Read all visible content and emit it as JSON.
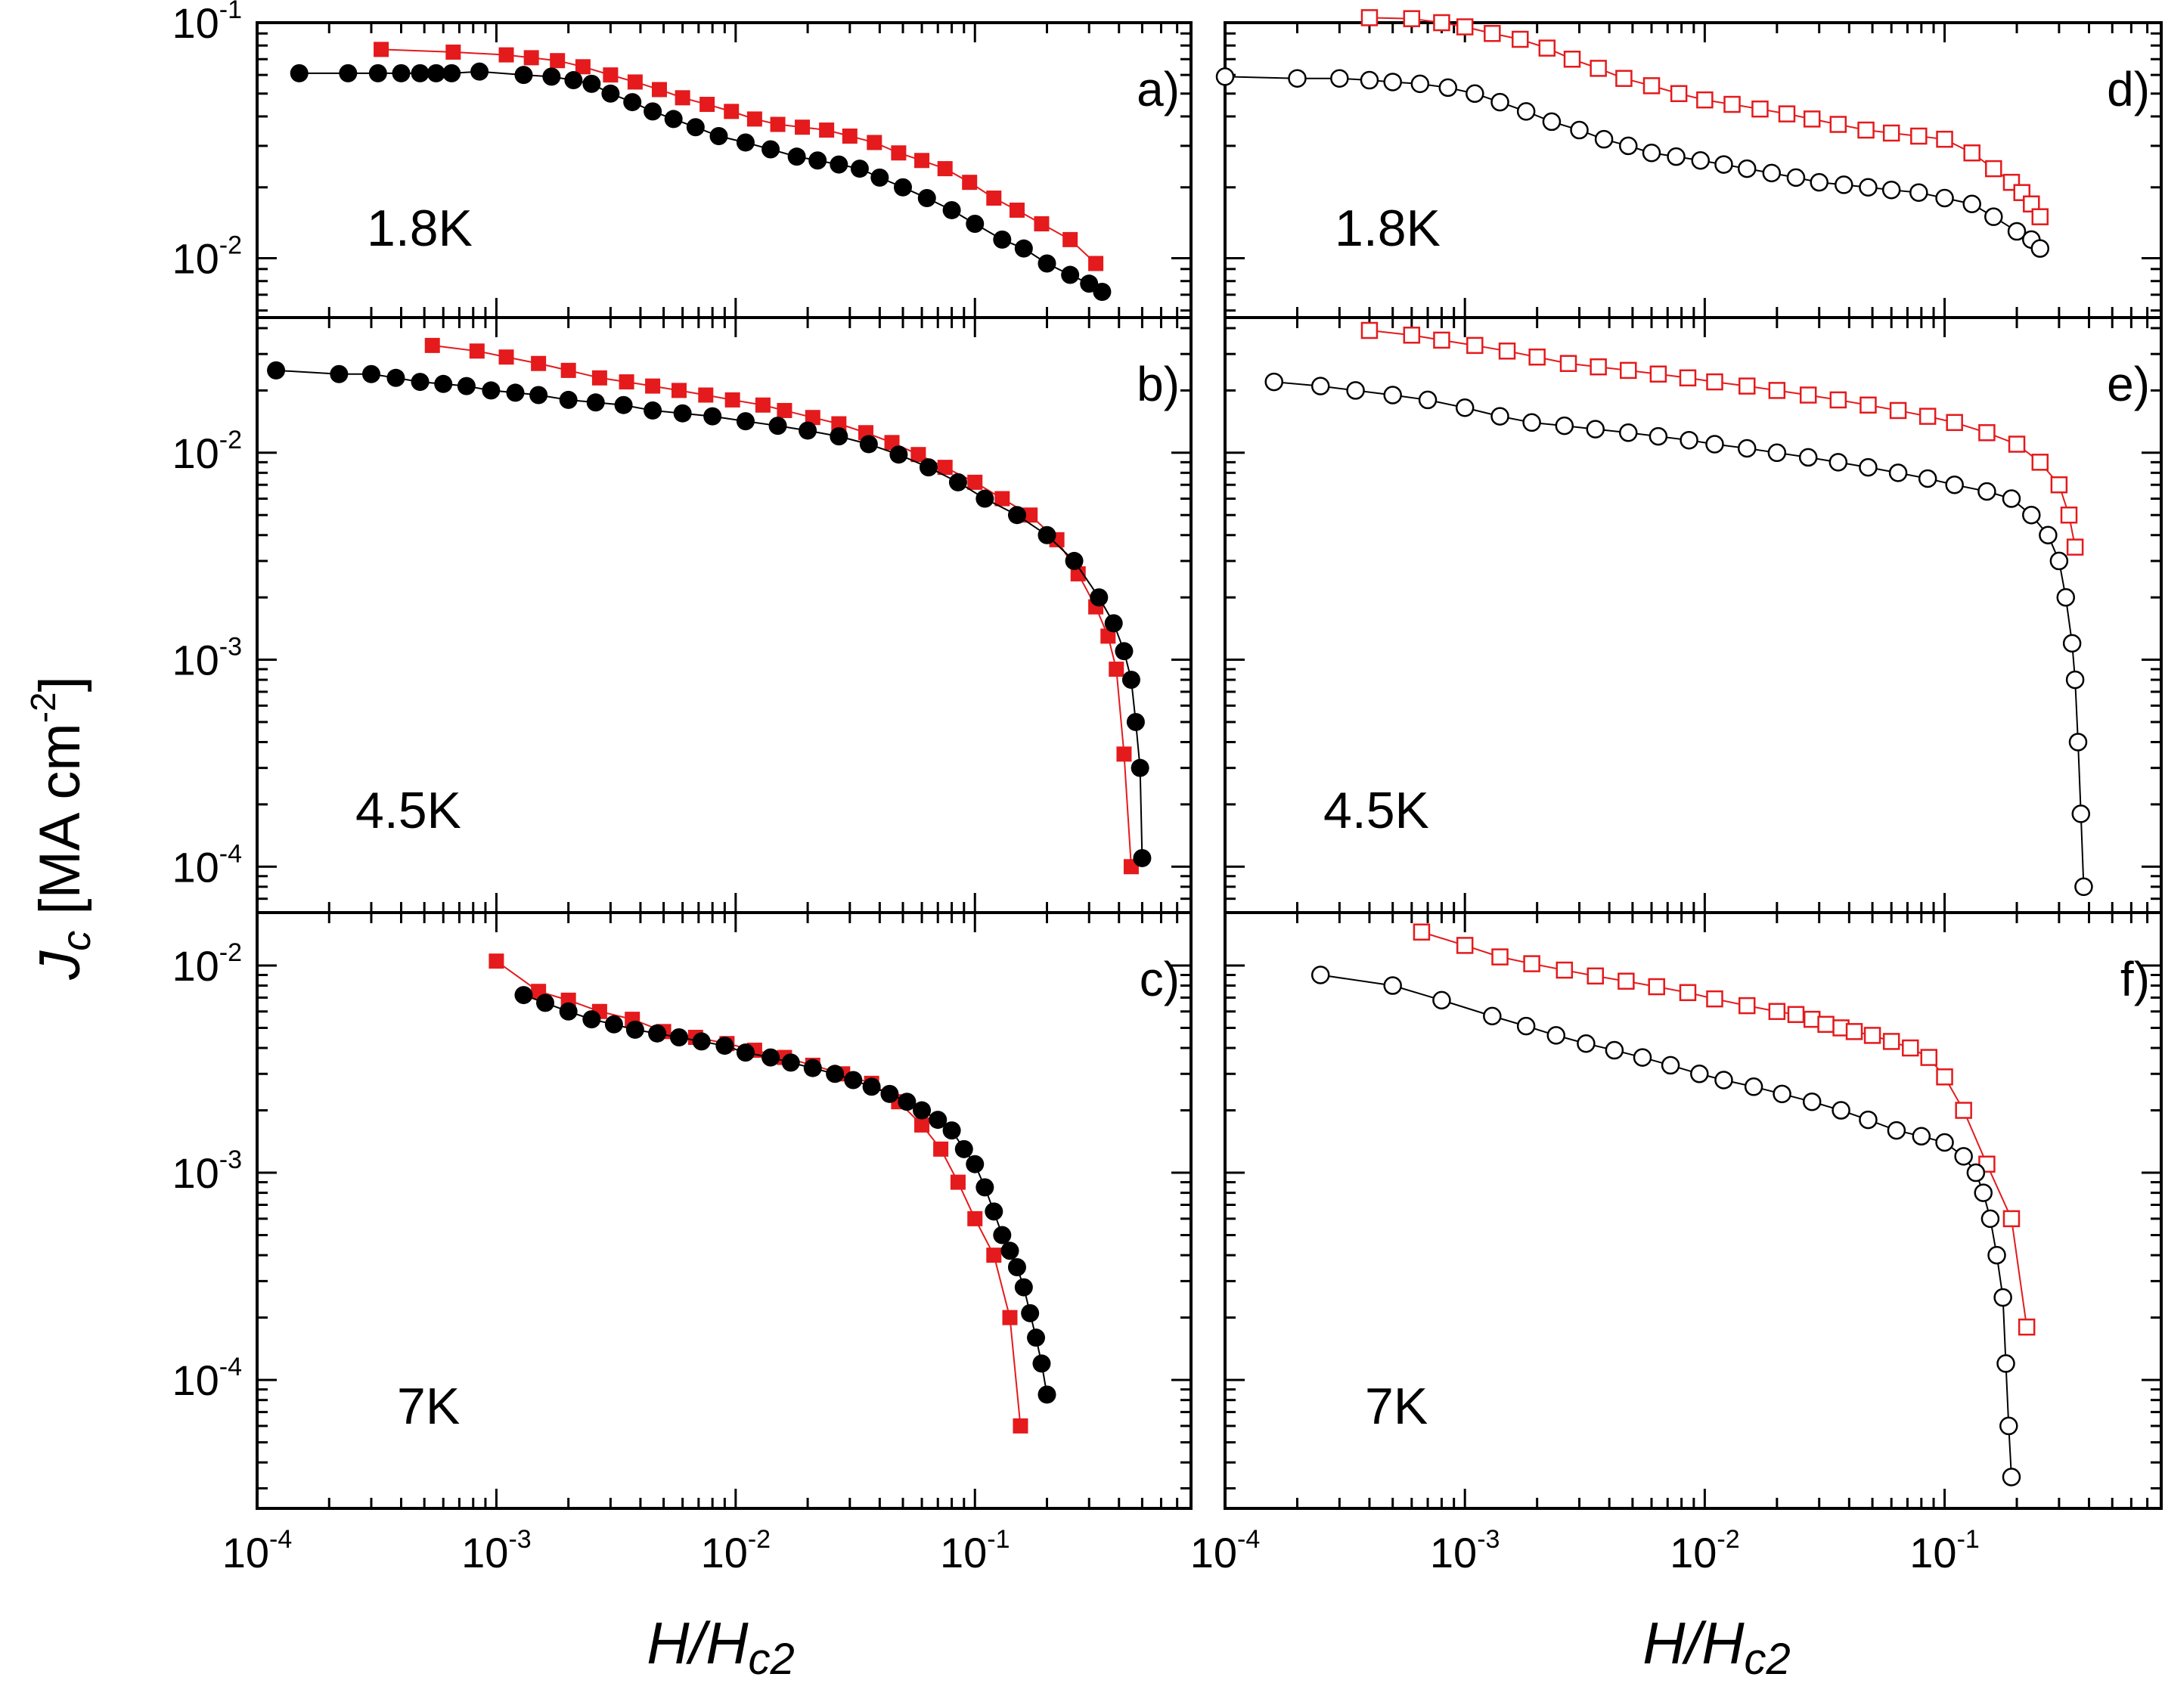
{
  "figure": {
    "x_axis_title": {
      "base": "H/H",
      "sub": "c2"
    },
    "y_axis_title": {
      "j": "J",
      "j_sub": "c",
      "unit_a": " [MA cm",
      "unit_exp": "-2",
      "unit_b": "]"
    }
  },
  "colors": {
    "series_a": "#e41a1c",
    "series_b": "#000000"
  },
  "chart_data": [
    {
      "id": "a",
      "type": "scatter",
      "panel_label": "a)",
      "temperature": "1.8K",
      "x_scale": "log",
      "y_scale": "log",
      "xlim": [
        0.0001,
        0.8
      ],
      "ylim": [
        0.0056,
        0.1
      ],
      "y_ticks": [
        {
          "v": 0.1,
          "e": "-1"
        },
        {
          "v": 0.01,
          "e": "-2"
        }
      ],
      "series": [
        {
          "name": "red filled squares",
          "color": "#e41a1c",
          "marker": "square",
          "filled": true,
          "x": [
            0.00033,
            0.00066,
            0.0011,
            0.0014,
            0.0018,
            0.0023,
            0.003,
            0.0038,
            0.0048,
            0.006,
            0.0076,
            0.0096,
            0.012,
            0.015,
            0.019,
            0.024,
            0.03,
            0.038,
            0.048,
            0.06,
            0.075,
            0.095,
            0.12,
            0.15,
            0.19,
            0.25,
            0.32
          ],
          "y": [
            0.077,
            0.075,
            0.073,
            0.071,
            0.069,
            0.065,
            0.06,
            0.056,
            0.052,
            0.048,
            0.045,
            0.042,
            0.039,
            0.037,
            0.036,
            0.035,
            0.033,
            0.031,
            0.028,
            0.026,
            0.024,
            0.021,
            0.018,
            0.016,
            0.014,
            0.012,
            0.0095
          ]
        },
        {
          "name": "black filled circles",
          "color": "#000000",
          "marker": "circle",
          "filled": true,
          "x": [
            0.00015,
            0.00024,
            0.00032,
            0.0004,
            0.00048,
            0.00056,
            0.00065,
            0.00085,
            0.0013,
            0.0017,
            0.0021,
            0.0025,
            0.003,
            0.0037,
            0.0045,
            0.0055,
            0.0068,
            0.0085,
            0.011,
            0.014,
            0.018,
            0.022,
            0.027,
            0.033,
            0.04,
            0.05,
            0.063,
            0.08,
            0.1,
            0.13,
            0.16,
            0.2,
            0.25,
            0.3,
            0.34
          ],
          "y": [
            0.061,
            0.061,
            0.061,
            0.061,
            0.061,
            0.061,
            0.061,
            0.062,
            0.06,
            0.059,
            0.057,
            0.055,
            0.05,
            0.046,
            0.042,
            0.039,
            0.036,
            0.033,
            0.031,
            0.029,
            0.027,
            0.026,
            0.025,
            0.024,
            0.022,
            0.02,
            0.018,
            0.016,
            0.014,
            0.012,
            0.011,
            0.0095,
            0.0085,
            0.0078,
            0.0072
          ]
        }
      ]
    },
    {
      "id": "b",
      "type": "scatter",
      "panel_label": "b)",
      "temperature": "4.5K",
      "x_scale": "log",
      "y_scale": "log",
      "xlim": [
        0.0001,
        0.8
      ],
      "ylim": [
        6e-05,
        0.045
      ],
      "y_ticks": [
        {
          "v": 0.01,
          "e": "-2"
        },
        {
          "v": 0.001,
          "e": "-3"
        },
        {
          "v": 0.0001,
          "e": "-4"
        }
      ],
      "series": [
        {
          "name": "red filled squares",
          "color": "#e41a1c",
          "marker": "square",
          "filled": true,
          "x": [
            0.00054,
            0.00083,
            0.0011,
            0.0015,
            0.002,
            0.0027,
            0.0035,
            0.0045,
            0.0058,
            0.0075,
            0.0097,
            0.013,
            0.016,
            0.021,
            0.027,
            0.035,
            0.045,
            0.058,
            0.075,
            0.1,
            0.13,
            0.17,
            0.22,
            0.27,
            0.32,
            0.36,
            0.39,
            0.42,
            0.45
          ],
          "y": [
            0.033,
            0.031,
            0.029,
            0.027,
            0.025,
            0.023,
            0.022,
            0.021,
            0.02,
            0.019,
            0.018,
            0.017,
            0.016,
            0.0148,
            0.0138,
            0.0125,
            0.0112,
            0.0098,
            0.0085,
            0.0072,
            0.006,
            0.005,
            0.0038,
            0.0026,
            0.0018,
            0.0013,
            0.0009,
            0.00035,
            0.0001
          ]
        },
        {
          "name": "black filled circles",
          "color": "#000000",
          "marker": "circle",
          "filled": true,
          "x": [
            0.00012,
            0.00022,
            0.0003,
            0.00038,
            0.00048,
            0.0006,
            0.00075,
            0.00095,
            0.0012,
            0.0015,
            0.002,
            0.0026,
            0.0034,
            0.0045,
            0.006,
            0.008,
            0.011,
            0.015,
            0.02,
            0.027,
            0.036,
            0.048,
            0.064,
            0.085,
            0.11,
            0.15,
            0.2,
            0.26,
            0.33,
            0.38,
            0.42,
            0.45,
            0.47,
            0.49,
            0.5
          ],
          "y": [
            0.025,
            0.024,
            0.024,
            0.023,
            0.022,
            0.0215,
            0.021,
            0.02,
            0.0195,
            0.019,
            0.018,
            0.0175,
            0.017,
            0.016,
            0.0155,
            0.015,
            0.0142,
            0.0135,
            0.0128,
            0.012,
            0.011,
            0.0098,
            0.0085,
            0.0072,
            0.006,
            0.005,
            0.004,
            0.003,
            0.002,
            0.0015,
            0.0011,
            0.0008,
            0.0005,
            0.0003,
            0.00011
          ]
        }
      ]
    },
    {
      "id": "c",
      "type": "scatter",
      "panel_label": "c)",
      "temperature": "7K",
      "x_scale": "log",
      "y_scale": "log",
      "xlim": [
        0.0001,
        0.8
      ],
      "ylim": [
        2.4e-05,
        0.018
      ],
      "y_ticks": [
        {
          "v": 0.01,
          "e": "-2"
        },
        {
          "v": 0.001,
          "e": "-3"
        },
        {
          "v": 0.0001,
          "e": "-4"
        }
      ],
      "series": [
        {
          "name": "red filled squares",
          "color": "#e41a1c",
          "marker": "square",
          "filled": true,
          "x": [
            0.001,
            0.0015,
            0.002,
            0.0027,
            0.0037,
            0.005,
            0.0068,
            0.0092,
            0.012,
            0.016,
            0.021,
            0.028,
            0.037,
            0.048,
            0.06,
            0.072,
            0.085,
            0.1,
            0.12,
            0.14,
            0.155
          ],
          "y": [
            0.0105,
            0.0075,
            0.0068,
            0.006,
            0.0055,
            0.0048,
            0.0045,
            0.0042,
            0.0039,
            0.0036,
            0.0033,
            0.003,
            0.0027,
            0.0022,
            0.0017,
            0.0013,
            0.0009,
            0.0006,
            0.0004,
            0.0002,
            6e-05
          ]
        },
        {
          "name": "black filled circles",
          "color": "#000000",
          "marker": "circle",
          "filled": true,
          "x": [
            0.0013,
            0.0016,
            0.002,
            0.0025,
            0.0031,
            0.0038,
            0.0047,
            0.0058,
            0.0072,
            0.009,
            0.011,
            0.014,
            0.017,
            0.021,
            0.026,
            0.031,
            0.037,
            0.044,
            0.052,
            0.06,
            0.07,
            0.08,
            0.09,
            0.1,
            0.11,
            0.12,
            0.13,
            0.14,
            0.15,
            0.16,
            0.17,
            0.18,
            0.19,
            0.2
          ],
          "y": [
            0.0072,
            0.0066,
            0.006,
            0.0055,
            0.0052,
            0.0049,
            0.0047,
            0.0045,
            0.0043,
            0.0041,
            0.0038,
            0.0036,
            0.0034,
            0.0032,
            0.003,
            0.0028,
            0.0026,
            0.0024,
            0.0022,
            0.002,
            0.0018,
            0.0016,
            0.0013,
            0.0011,
            0.00085,
            0.00065,
            0.0005,
            0.00042,
            0.00035,
            0.00028,
            0.00021,
            0.00016,
            0.00012,
            8.5e-05
          ]
        }
      ]
    },
    {
      "id": "d",
      "type": "scatter",
      "panel_label": "d)",
      "temperature": "1.8K",
      "x_scale": "log",
      "y_scale": "log",
      "xlim": [
        0.0001,
        0.8
      ],
      "ylim": [
        0.0056,
        0.1
      ],
      "y_ticks": [
        {
          "v": 0.1,
          "e": ""
        },
        {
          "v": 0.01,
          "e": ""
        }
      ],
      "series": [
        {
          "name": "red open squares",
          "color": "#e41a1c",
          "marker": "square",
          "filled": false,
          "x": [
            0.0004,
            0.0006,
            0.0008,
            0.001,
            0.0013,
            0.0017,
            0.0022,
            0.0028,
            0.0036,
            0.0046,
            0.006,
            0.0078,
            0.01,
            0.013,
            0.017,
            0.022,
            0.028,
            0.036,
            0.047,
            0.06,
            0.078,
            0.1,
            0.13,
            0.16,
            0.19,
            0.21,
            0.23,
            0.25
          ],
          "y": [
            0.105,
            0.104,
            0.1,
            0.096,
            0.09,
            0.085,
            0.078,
            0.07,
            0.064,
            0.058,
            0.054,
            0.05,
            0.047,
            0.045,
            0.043,
            0.041,
            0.039,
            0.037,
            0.035,
            0.034,
            0.033,
            0.032,
            0.028,
            0.024,
            0.021,
            0.019,
            0.017,
            0.015
          ]
        },
        {
          "name": "black open circles",
          "color": "#000000",
          "marker": "circle",
          "filled": false,
          "x": [
            0.0001,
            0.0002,
            0.0003,
            0.0004,
            0.0005,
            0.00065,
            0.00085,
            0.0011,
            0.0014,
            0.0018,
            0.0023,
            0.003,
            0.0038,
            0.0048,
            0.006,
            0.0076,
            0.0096,
            0.012,
            0.015,
            0.019,
            0.024,
            0.03,
            0.038,
            0.048,
            0.06,
            0.078,
            0.1,
            0.13,
            0.16,
            0.2,
            0.23,
            0.25
          ],
          "y": [
            0.059,
            0.058,
            0.058,
            0.057,
            0.056,
            0.055,
            0.053,
            0.05,
            0.046,
            0.042,
            0.038,
            0.035,
            0.032,
            0.03,
            0.028,
            0.027,
            0.026,
            0.025,
            0.024,
            0.023,
            0.022,
            0.021,
            0.0205,
            0.02,
            0.0195,
            0.019,
            0.018,
            0.017,
            0.015,
            0.013,
            0.012,
            0.011
          ]
        }
      ]
    },
    {
      "id": "e",
      "type": "scatter",
      "panel_label": "e)",
      "temperature": "4.5K",
      "x_scale": "log",
      "y_scale": "log",
      "xlim": [
        0.0001,
        0.8
      ],
      "ylim": [
        6e-05,
        0.045
      ],
      "y_ticks": [
        {
          "v": 0.01,
          "e": ""
        },
        {
          "v": 0.001,
          "e": ""
        },
        {
          "v": 0.0001,
          "e": ""
        }
      ],
      "series": [
        {
          "name": "red open squares",
          "color": "#e41a1c",
          "marker": "square",
          "filled": false,
          "x": [
            0.0004,
            0.0006,
            0.0008,
            0.0011,
            0.0015,
            0.002,
            0.0027,
            0.0036,
            0.0048,
            0.0064,
            0.0085,
            0.011,
            0.015,
            0.02,
            0.027,
            0.036,
            0.048,
            0.064,
            0.085,
            0.11,
            0.15,
            0.2,
            0.25,
            0.3,
            0.33,
            0.35
          ],
          "y": [
            0.039,
            0.037,
            0.035,
            0.033,
            0.031,
            0.029,
            0.027,
            0.026,
            0.025,
            0.024,
            0.023,
            0.022,
            0.021,
            0.02,
            0.019,
            0.018,
            0.017,
            0.016,
            0.015,
            0.014,
            0.0125,
            0.011,
            0.009,
            0.007,
            0.005,
            0.0035
          ]
        },
        {
          "name": "black open circles",
          "color": "#000000",
          "marker": "circle",
          "filled": false,
          "x": [
            0.00016,
            0.00025,
            0.00035,
            0.0005,
            0.0007,
            0.001,
            0.0014,
            0.0019,
            0.0026,
            0.0035,
            0.0048,
            0.0064,
            0.0086,
            0.011,
            0.015,
            0.02,
            0.027,
            0.036,
            0.048,
            0.064,
            0.085,
            0.11,
            0.15,
            0.19,
            0.23,
            0.27,
            0.3,
            0.32,
            0.34,
            0.35,
            0.36,
            0.37,
            0.38
          ],
          "y": [
            0.022,
            0.021,
            0.02,
            0.019,
            0.018,
            0.0165,
            0.015,
            0.014,
            0.0135,
            0.013,
            0.0125,
            0.012,
            0.0115,
            0.011,
            0.0105,
            0.01,
            0.0095,
            0.009,
            0.0085,
            0.008,
            0.0075,
            0.007,
            0.0065,
            0.006,
            0.005,
            0.004,
            0.003,
            0.002,
            0.0012,
            0.0008,
            0.0004,
            0.00018,
            8e-05
          ]
        }
      ]
    },
    {
      "id": "f",
      "type": "scatter",
      "panel_label": "f)",
      "temperature": "7K",
      "x_scale": "log",
      "y_scale": "log",
      "xlim": [
        0.0001,
        0.8
      ],
      "ylim": [
        2.4e-05,
        0.018
      ],
      "y_ticks": [
        {
          "v": 0.01,
          "e": ""
        },
        {
          "v": 0.001,
          "e": ""
        },
        {
          "v": 0.0001,
          "e": ""
        }
      ],
      "series": [
        {
          "name": "red open squares",
          "color": "#e41a1c",
          "marker": "square",
          "filled": false,
          "x": [
            0.00066,
            0.001,
            0.0014,
            0.0019,
            0.0026,
            0.0035,
            0.0047,
            0.0063,
            0.0085,
            0.011,
            0.015,
            0.02,
            0.024,
            0.028,
            0.032,
            0.037,
            0.042,
            0.05,
            0.06,
            0.072,
            0.086,
            0.1,
            0.12,
            0.15,
            0.19,
            0.22
          ],
          "y": [
            0.0145,
            0.0125,
            0.011,
            0.0102,
            0.0095,
            0.0089,
            0.0084,
            0.0079,
            0.0074,
            0.0069,
            0.0064,
            0.006,
            0.0058,
            0.0055,
            0.0052,
            0.005,
            0.0048,
            0.0046,
            0.0043,
            0.004,
            0.0036,
            0.0029,
            0.002,
            0.0011,
            0.0006,
            0.00018
          ]
        },
        {
          "name": "black open circles",
          "color": "#000000",
          "marker": "circle",
          "filled": false,
          "x": [
            0.00025,
            0.0005,
            0.0008,
            0.0013,
            0.0018,
            0.0024,
            0.0032,
            0.0042,
            0.0055,
            0.0072,
            0.0095,
            0.012,
            0.016,
            0.021,
            0.028,
            0.037,
            0.048,
            0.063,
            0.08,
            0.1,
            0.12,
            0.135,
            0.145,
            0.155,
            0.165,
            0.175,
            0.18,
            0.185,
            0.19
          ],
          "y": [
            0.009,
            0.008,
            0.0068,
            0.0057,
            0.0051,
            0.0046,
            0.0042,
            0.0039,
            0.0036,
            0.0033,
            0.003,
            0.0028,
            0.0026,
            0.0024,
            0.0022,
            0.002,
            0.0018,
            0.0016,
            0.0015,
            0.0014,
            0.0012,
            0.001,
            0.0008,
            0.0006,
            0.0004,
            0.00025,
            0.00012,
            6e-05,
            3.4e-05
          ]
        }
      ]
    }
  ]
}
